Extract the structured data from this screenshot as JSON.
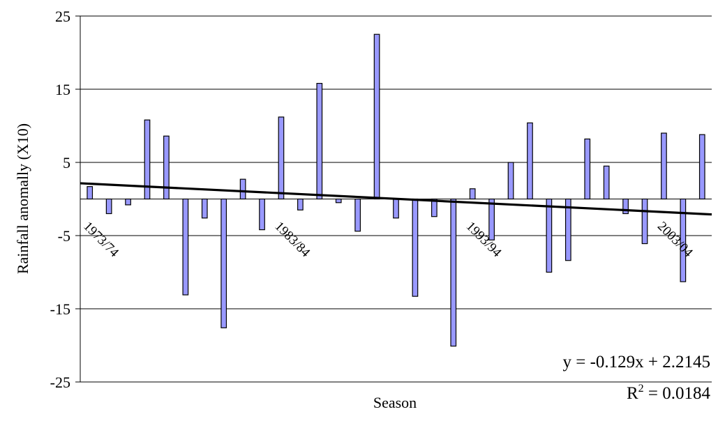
{
  "chart_data": {
    "type": "bar",
    "title": "",
    "xlabel": "Season",
    "ylabel": "Rainfall anomally (X10)",
    "ylim": [
      -25,
      25
    ],
    "yticks": [
      25,
      15,
      5,
      -5,
      -15,
      -25
    ],
    "grid": true,
    "series_color": "#9999ff",
    "bar_border_color": "#000000",
    "trend_color": "#000000",
    "category_labels": [
      {
        "index": 0,
        "text": "1973/74"
      },
      {
        "index": 10,
        "text": "1983/84"
      },
      {
        "index": 20,
        "text": "1993/94"
      },
      {
        "index": 30,
        "text": "2003/04"
      }
    ],
    "values": [
      1.7,
      -2.0,
      -0.8,
      10.8,
      8.6,
      -13.1,
      -2.6,
      -17.6,
      2.7,
      -4.2,
      11.2,
      -1.5,
      15.8,
      -0.5,
      -4.4,
      22.5,
      -2.6,
      -13.3,
      -2.4,
      -20.1,
      1.4,
      -5.6,
      5.0,
      10.4,
      -10.0,
      -8.4,
      8.2,
      4.5,
      -2.0,
      -6.1,
      9.0,
      -11.3,
      8.8
    ],
    "trendline": {
      "slope": -0.129,
      "intercept": 2.2145,
      "equation": "y = -0.129x + 2.2145",
      "r2_prefix": "R",
      "r2_sup": "2",
      "r2_value": " = 0.0184"
    }
  }
}
